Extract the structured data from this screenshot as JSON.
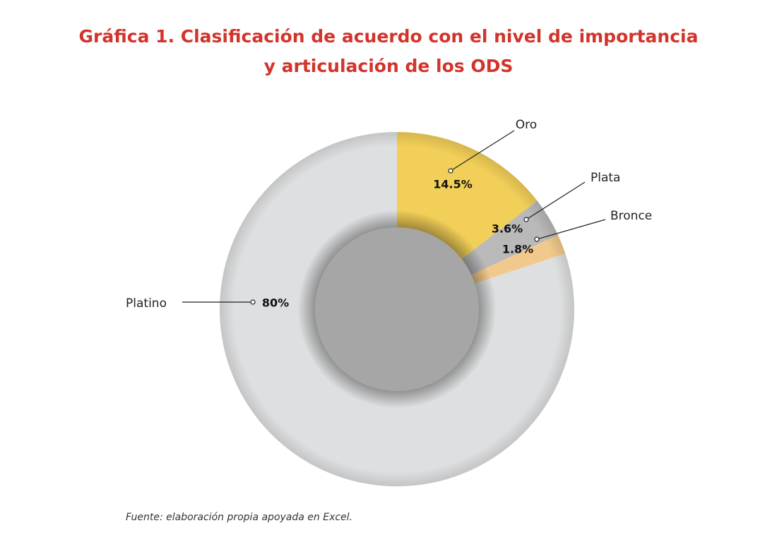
{
  "chart_data": {
    "type": "donut",
    "title": [
      "Gráfica 1. Clasificación de acuerdo con el nivel de importancia",
      "y articulación de los ODS"
    ],
    "categories": [
      "Oro",
      "Plata",
      "Bronce",
      "Platino"
    ],
    "values": [
      14.5,
      3.6,
      1.8,
      80
    ],
    "value_labels": [
      "14.5%",
      "3.6%",
      "1.8%",
      "80%"
    ],
    "colors": [
      "#f2cf58",
      "#b9b9b9",
      "#f2c98c",
      "#dedfe0"
    ],
    "source": "Fuente: elaboración propia apoyada en Excel."
  }
}
